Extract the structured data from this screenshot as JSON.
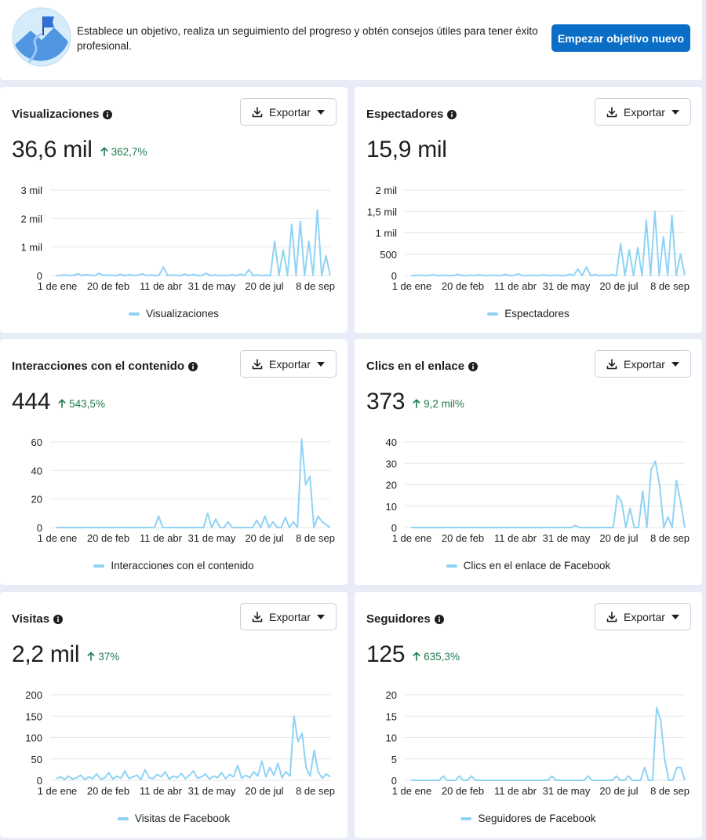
{
  "banner": {
    "text": "Establece un objetivo, realiza un seguimiento del progreso y obtén consejos útiles para tener éxito profesional.",
    "button_label": "Empezar objetivo nuevo"
  },
  "export_label": "Exportar",
  "colors": {
    "line": "#8fd3f4",
    "grid": "#e4e6eb",
    "positive": "#1f7a4d",
    "primary": "#0a6ec7"
  },
  "cards": [
    {
      "title": "Visualizaciones",
      "value": "36,6 mil",
      "change": "362,7%",
      "legend": "Visualizaciones",
      "chart_data": {
        "type": "line",
        "x_tick_labels": [
          "1 de ene",
          "20 de feb",
          "11 de abr",
          "31 de may",
          "20 de jul",
          "8 de sep"
        ],
        "y_tick_labels": [
          "0",
          "1 mil",
          "2 mil",
          "3 mil"
        ],
        "ylim": [
          0,
          3000
        ],
        "series": [
          {
            "name": "Visualizaciones",
            "values": [
              0,
              5,
              20,
              0,
              10,
              60,
              0,
              30,
              10,
              0,
              80,
              0,
              20,
              10,
              0,
              40,
              0,
              30,
              0,
              10,
              60,
              0,
              20,
              0,
              10,
              300,
              0,
              20,
              10,
              0,
              50,
              0,
              40,
              0,
              10,
              80,
              0,
              20,
              0,
              10,
              0,
              30,
              0,
              50,
              0,
              200,
              0,
              20,
              0,
              10,
              0,
              1200,
              0,
              900,
              0,
              1800,
              0,
              1900,
              0,
              1200,
              0,
              2300,
              0,
              700,
              0
            ]
          }
        ]
      }
    },
    {
      "title": "Espectadores",
      "value": "15,9 mil",
      "change": "",
      "legend": "Espectadores",
      "chart_data": {
        "type": "line",
        "x_tick_labels": [
          "1 de ene",
          "20 de feb",
          "11 de abr",
          "31 de may",
          "20 de jul",
          "8 de sep"
        ],
        "y_tick_labels": [
          "0",
          "500",
          "1 mil",
          "1,5 mil",
          "2 mil"
        ],
        "ylim": [
          0,
          2000
        ],
        "series": [
          {
            "name": "Espectadores",
            "values": [
              0,
              0,
              10,
              0,
              0,
              20,
              0,
              0,
              10,
              0,
              0,
              30,
              0,
              0,
              10,
              0,
              20,
              0,
              0,
              10,
              0,
              0,
              30,
              0,
              0,
              40,
              0,
              0,
              10,
              0,
              0,
              20,
              0,
              0,
              10,
              0,
              0,
              30,
              0,
              150,
              0,
              200,
              0,
              20,
              0,
              10,
              0,
              20,
              0,
              750,
              0,
              600,
              0,
              650,
              0,
              1300,
              0,
              1500,
              0,
              900,
              0,
              1400,
              0,
              500,
              0
            ]
          }
        ]
      }
    },
    {
      "title": "Interacciones con el contenido",
      "value": "444",
      "change": "543,5%",
      "legend": "Interacciones con el contenido",
      "chart_data": {
        "type": "line",
        "x_tick_labels": [
          "1 de ene",
          "20 de feb",
          "11 de abr",
          "31 de may",
          "20 de jul",
          "8 de sep"
        ],
        "y_tick_labels": [
          "0",
          "20",
          "40",
          "60"
        ],
        "ylim": [
          0,
          70
        ],
        "series": [
          {
            "name": "Interacciones con el contenido",
            "values": [
              0,
              0,
              0,
              0,
              0,
              0,
              0,
              0,
              0,
              0,
              0,
              0,
              0,
              0,
              0,
              0,
              0,
              0,
              0,
              0,
              0,
              0,
              0,
              0,
              0,
              8,
              0,
              0,
              0,
              0,
              0,
              0,
              0,
              0,
              0,
              0,
              0,
              10,
              0,
              6,
              0,
              0,
              4,
              0,
              0,
              0,
              0,
              0,
              0,
              5,
              0,
              8,
              0,
              4,
              0,
              0,
              7,
              0,
              4,
              0,
              62,
              30,
              36,
              0,
              8,
              4,
              2,
              0
            ]
          }
        ]
      }
    },
    {
      "title": "Clics en el enlace",
      "value": "373",
      "change": "9,2 mil%",
      "legend": "Clics en el enlace de Facebook",
      "chart_data": {
        "type": "line",
        "x_tick_labels": [
          "1 de ene",
          "20 de feb",
          "11 de abr",
          "31 de may",
          "20 de jul",
          "8 de sep"
        ],
        "y_tick_labels": [
          "0",
          "10",
          "20",
          "30",
          "40"
        ],
        "ylim": [
          0,
          40
        ],
        "series": [
          {
            "name": "Clics en el enlace de Facebook",
            "values": [
              0,
              0,
              0,
              0,
              0,
              0,
              0,
              0,
              0,
              0,
              0,
              0,
              0,
              0,
              0,
              0,
              0,
              0,
              0,
              0,
              0,
              0,
              0,
              0,
              0,
              0,
              0,
              0,
              0,
              0,
              0,
              0,
              0,
              0,
              0,
              0,
              0,
              0,
              0,
              1,
              0,
              0,
              0,
              0,
              0,
              0,
              0,
              0,
              0,
              15,
              12,
              0,
              9,
              0,
              0,
              17,
              0,
              27,
              31,
              20,
              0,
              5,
              0,
              22,
              12,
              0
            ]
          }
        ]
      }
    },
    {
      "title": "Visitas",
      "value": "2,2 mil",
      "change": "37%",
      "legend": "Visitas de Facebook",
      "chart_data": {
        "type": "line",
        "x_tick_labels": [
          "1 de ene",
          "20 de feb",
          "11 de abr",
          "31 de may",
          "20 de jul",
          "8 de sep"
        ],
        "y_tick_labels": [
          "0",
          "50",
          "100",
          "150",
          "200"
        ],
        "ylim": [
          0,
          200
        ],
        "series": [
          {
            "name": "Visitas de Facebook",
            "values": [
              4,
              8,
              2,
              10,
              3,
              6,
              12,
              2,
              8,
              4,
              15,
              2,
              6,
              18,
              3,
              10,
              5,
              22,
              4,
              8,
              12,
              2,
              25,
              6,
              4,
              14,
              8,
              20,
              3,
              10,
              6,
              16,
              4,
              12,
              22,
              5,
              8,
              15,
              3,
              10,
              6,
              18,
              4,
              14,
              8,
              35,
              5,
              12,
              6,
              20,
              10,
              45,
              8,
              30,
              12,
              40,
              6,
              20,
              10,
              150,
              90,
              110,
              30,
              10,
              70,
              20,
              5,
              15,
              8
            ]
          }
        ]
      }
    },
    {
      "title": "Seguidores",
      "value": "125",
      "change": "635,3%",
      "legend": "Seguidores de Facebook",
      "chart_data": {
        "type": "line",
        "x_tick_labels": [
          "1 de ene",
          "20 de feb",
          "11 de abr",
          "31 de may",
          "20 de jul",
          "8 de sep"
        ],
        "y_tick_labels": [
          "0",
          "5",
          "10",
          "15",
          "20"
        ],
        "ylim": [
          0,
          20
        ],
        "series": [
          {
            "name": "Seguidores de Facebook",
            "values": [
              0,
              0,
              0,
              0,
              0,
              0,
              0,
              0,
              1,
              0,
              0,
              0,
              1,
              0,
              0,
              1,
              0,
              0,
              0,
              0,
              0,
              0,
              0,
              0,
              0,
              0,
              0,
              0,
              0,
              0,
              0,
              0,
              0,
              0,
              0,
              1,
              0,
              0,
              0,
              0,
              0,
              0,
              0,
              0,
              1,
              0,
              0,
              0,
              0,
              0,
              0,
              1,
              0,
              0,
              1,
              0,
              0,
              0,
              3,
              0,
              0,
              17,
              14,
              5,
              0,
              0,
              3,
              3,
              0
            ]
          }
        ]
      }
    }
  ]
}
